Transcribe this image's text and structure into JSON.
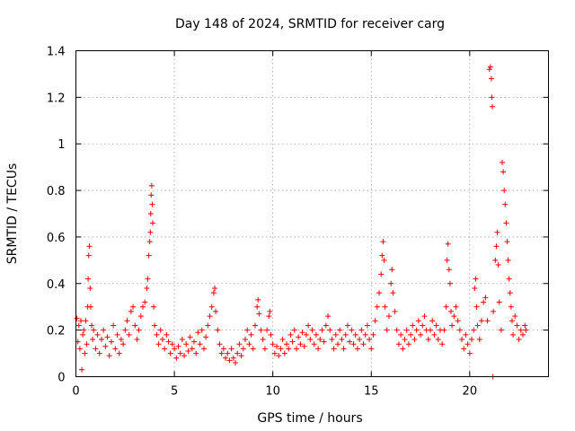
{
  "chart_data": {
    "type": "scatter",
    "title": "Day 148 of 2024, SRMTID for receiver carg",
    "xlabel": "GPS time / hours",
    "ylabel": "SRMTID / TECUs",
    "xlim": [
      0,
      24
    ],
    "ylim": [
      0,
      1.4
    ],
    "xticks": [
      0,
      5,
      10,
      15,
      20
    ],
    "xtick_labels": [
      "0",
      "5",
      "10",
      "15",
      "20"
    ],
    "yticks": [
      0,
      0.2,
      0.4,
      0.6,
      0.8,
      1.0,
      1.2,
      1.4
    ],
    "ytick_labels": [
      "0",
      "0.2",
      "0.4",
      "0.6",
      "0.8",
      "1",
      "1.2",
      "1.4"
    ],
    "grid": true,
    "marker": "plus",
    "marker_color": "#ff0000",
    "series": [
      {
        "name": "SRMTID",
        "points": [
          [
            0.05,
            0.25
          ],
          [
            0.1,
            0.15
          ],
          [
            0.15,
            0.22
          ],
          [
            0.2,
            0.12
          ],
          [
            0.25,
            0.24
          ],
          [
            0.3,
            0.03
          ],
          [
            0.35,
            0.18
          ],
          [
            0.4,
            0.2
          ],
          [
            0.45,
            0.1
          ],
          [
            0.5,
            0.24
          ],
          [
            0.55,
            0.14
          ],
          [
            0.6,
            0.3
          ],
          [
            0.62,
            0.42
          ],
          [
            0.65,
            0.52
          ],
          [
            0.68,
            0.56
          ],
          [
            0.72,
            0.38
          ],
          [
            0.75,
            0.3
          ],
          [
            0.8,
            0.22
          ],
          [
            0.85,
            0.16
          ],
          [
            0.9,
            0.2
          ],
          [
            1.0,
            0.12
          ],
          [
            1.1,
            0.18
          ],
          [
            1.2,
            0.1
          ],
          [
            1.3,
            0.16
          ],
          [
            1.4,
            0.2
          ],
          [
            1.5,
            0.13
          ],
          [
            1.6,
            0.17
          ],
          [
            1.7,
            0.09
          ],
          [
            1.8,
            0.15
          ],
          [
            1.9,
            0.22
          ],
          [
            2.0,
            0.12
          ],
          [
            2.1,
            0.18
          ],
          [
            2.2,
            0.1
          ],
          [
            2.3,
            0.16
          ],
          [
            2.4,
            0.14
          ],
          [
            2.5,
            0.2
          ],
          [
            2.6,
            0.24
          ],
          [
            2.7,
            0.18
          ],
          [
            2.8,
            0.28
          ],
          [
            2.9,
            0.3
          ],
          [
            3.0,
            0.22
          ],
          [
            3.1,
            0.16
          ],
          [
            3.2,
            0.2
          ],
          [
            3.3,
            0.26
          ],
          [
            3.4,
            0.3
          ],
          [
            3.5,
            0.32
          ],
          [
            3.6,
            0.38
          ],
          [
            3.65,
            0.42
          ],
          [
            3.7,
            0.52
          ],
          [
            3.75,
            0.58
          ],
          [
            3.78,
            0.62
          ],
          [
            3.8,
            0.7
          ],
          [
            3.82,
            0.78
          ],
          [
            3.85,
            0.82
          ],
          [
            3.88,
            0.74
          ],
          [
            3.9,
            0.66
          ],
          [
            3.95,
            0.3
          ],
          [
            4.0,
            0.22
          ],
          [
            4.1,
            0.18
          ],
          [
            4.2,
            0.14
          ],
          [
            4.3,
            0.2
          ],
          [
            4.4,
            0.16
          ],
          [
            4.5,
            0.12
          ],
          [
            4.6,
            0.18
          ],
          [
            4.7,
            0.15
          ],
          [
            4.8,
            0.1
          ],
          [
            4.9,
            0.14
          ],
          [
            5.0,
            0.12
          ],
          [
            5.1,
            0.08
          ],
          [
            5.2,
            0.13
          ],
          [
            5.3,
            0.1
          ],
          [
            5.4,
            0.16
          ],
          [
            5.5,
            0.09
          ],
          [
            5.6,
            0.14
          ],
          [
            5.7,
            0.11
          ],
          [
            5.8,
            0.17
          ],
          [
            5.9,
            0.12
          ],
          [
            6.0,
            0.15
          ],
          [
            6.1,
            0.1
          ],
          [
            6.2,
            0.19
          ],
          [
            6.3,
            0.14
          ],
          [
            6.4,
            0.2
          ],
          [
            6.5,
            0.12
          ],
          [
            6.6,
            0.17
          ],
          [
            6.7,
            0.22
          ],
          [
            6.8,
            0.26
          ],
          [
            6.9,
            0.3
          ],
          [
            7.0,
            0.36
          ],
          [
            7.05,
            0.38
          ],
          [
            7.1,
            0.28
          ],
          [
            7.2,
            0.2
          ],
          [
            7.3,
            0.14
          ],
          [
            7.4,
            0.1
          ],
          [
            7.5,
            0.12
          ],
          [
            7.6,
            0.08
          ],
          [
            7.7,
            0.1
          ],
          [
            7.8,
            0.07
          ],
          [
            7.9,
            0.12
          ],
          [
            8.0,
            0.08
          ],
          [
            8.1,
            0.06
          ],
          [
            8.2,
            0.1
          ],
          [
            8.3,
            0.14
          ],
          [
            8.4,
            0.09
          ],
          [
            8.5,
            0.12
          ],
          [
            8.6,
            0.16
          ],
          [
            8.7,
            0.2
          ],
          [
            8.8,
            0.14
          ],
          [
            8.9,
            0.18
          ],
          [
            9.0,
            0.12
          ],
          [
            9.1,
            0.22
          ],
          [
            9.2,
            0.3
          ],
          [
            9.25,
            0.33
          ],
          [
            9.3,
            0.27
          ],
          [
            9.4,
            0.2
          ],
          [
            9.5,
            0.16
          ],
          [
            9.6,
            0.12
          ],
          [
            9.7,
            0.2
          ],
          [
            9.8,
            0.26
          ],
          [
            9.85,
            0.28
          ],
          [
            9.9,
            0.18
          ],
          [
            10.0,
            0.14
          ],
          [
            10.1,
            0.1
          ],
          [
            10.2,
            0.13
          ],
          [
            10.3,
            0.09
          ],
          [
            10.4,
            0.12
          ],
          [
            10.5,
            0.16
          ],
          [
            10.6,
            0.1
          ],
          [
            10.7,
            0.14
          ],
          [
            10.8,
            0.12
          ],
          [
            10.9,
            0.18
          ],
          [
            11.0,
            0.15
          ],
          [
            11.1,
            0.2
          ],
          [
            11.2,
            0.12
          ],
          [
            11.3,
            0.17
          ],
          [
            11.4,
            0.14
          ],
          [
            11.5,
            0.19
          ],
          [
            11.6,
            0.13
          ],
          [
            11.7,
            0.18
          ],
          [
            11.8,
            0.22
          ],
          [
            11.9,
            0.16
          ],
          [
            12.0,
            0.2
          ],
          [
            12.1,
            0.14
          ],
          [
            12.2,
            0.18
          ],
          [
            12.3,
            0.12
          ],
          [
            12.4,
            0.16
          ],
          [
            12.5,
            0.2
          ],
          [
            12.6,
            0.15
          ],
          [
            12.7,
            0.22
          ],
          [
            12.8,
            0.26
          ],
          [
            12.9,
            0.2
          ],
          [
            13.0,
            0.16
          ],
          [
            13.1,
            0.12
          ],
          [
            13.2,
            0.18
          ],
          [
            13.3,
            0.14
          ],
          [
            13.4,
            0.2
          ],
          [
            13.5,
            0.16
          ],
          [
            13.6,
            0.12
          ],
          [
            13.7,
            0.18
          ],
          [
            13.8,
            0.22
          ],
          [
            13.9,
            0.15
          ],
          [
            14.0,
            0.2
          ],
          [
            14.1,
            0.14
          ],
          [
            14.2,
            0.18
          ],
          [
            14.3,
            0.12
          ],
          [
            14.4,
            0.16
          ],
          [
            14.5,
            0.2
          ],
          [
            14.6,
            0.14
          ],
          [
            14.7,
            0.18
          ],
          [
            14.8,
            0.22
          ],
          [
            14.9,
            0.16
          ],
          [
            15.0,
            0.12
          ],
          [
            15.1,
            0.18
          ],
          [
            15.2,
            0.24
          ],
          [
            15.3,
            0.3
          ],
          [
            15.4,
            0.36
          ],
          [
            15.5,
            0.44
          ],
          [
            15.55,
            0.52
          ],
          [
            15.6,
            0.58
          ],
          [
            15.65,
            0.5
          ],
          [
            15.7,
            0.3
          ],
          [
            15.8,
            0.2
          ],
          [
            15.9,
            0.26
          ],
          [
            16.0,
            0.4
          ],
          [
            16.05,
            0.46
          ],
          [
            16.1,
            0.36
          ],
          [
            16.2,
            0.28
          ],
          [
            16.3,
            0.2
          ],
          [
            16.4,
            0.14
          ],
          [
            16.5,
            0.18
          ],
          [
            16.6,
            0.12
          ],
          [
            16.7,
            0.16
          ],
          [
            16.8,
            0.2
          ],
          [
            16.9,
            0.14
          ],
          [
            17.0,
            0.18
          ],
          [
            17.1,
            0.22
          ],
          [
            17.2,
            0.16
          ],
          [
            17.3,
            0.2
          ],
          [
            17.4,
            0.24
          ],
          [
            17.5,
            0.18
          ],
          [
            17.6,
            0.22
          ],
          [
            17.7,
            0.26
          ],
          [
            17.8,
            0.2
          ],
          [
            17.9,
            0.16
          ],
          [
            18.0,
            0.2
          ],
          [
            18.1,
            0.24
          ],
          [
            18.2,
            0.18
          ],
          [
            18.3,
            0.22
          ],
          [
            18.4,
            0.16
          ],
          [
            18.5,
            0.2
          ],
          [
            18.6,
            0.14
          ],
          [
            18.7,
            0.2
          ],
          [
            18.8,
            0.3
          ],
          [
            18.85,
            0.5
          ],
          [
            18.9,
            0.57
          ],
          [
            18.95,
            0.46
          ],
          [
            19.0,
            0.4
          ],
          [
            19.05,
            0.28
          ],
          [
            19.1,
            0.22
          ],
          [
            19.2,
            0.26
          ],
          [
            19.3,
            0.3
          ],
          [
            19.4,
            0.24
          ],
          [
            19.5,
            0.2
          ],
          [
            19.6,
            0.16
          ],
          [
            19.7,
            0.12
          ],
          [
            19.8,
            0.18
          ],
          [
            19.9,
            0.14
          ],
          [
            20.0,
            0.1
          ],
          [
            20.1,
            0.16
          ],
          [
            20.2,
            0.2
          ],
          [
            20.25,
            0.38
          ],
          [
            20.3,
            0.42
          ],
          [
            20.35,
            0.3
          ],
          [
            20.4,
            0.22
          ],
          [
            20.5,
            0.16
          ],
          [
            20.6,
            0.24
          ],
          [
            20.7,
            0.32
          ],
          [
            20.8,
            0.34
          ],
          [
            20.9,
            0.24
          ],
          [
            21.0,
            1.32
          ],
          [
            21.05,
            1.33
          ],
          [
            21.1,
            1.28
          ],
          [
            21.12,
            1.2
          ],
          [
            21.15,
            1.16
          ],
          [
            21.18,
            0.0
          ],
          [
            21.2,
            0.28
          ],
          [
            21.3,
            0.5
          ],
          [
            21.35,
            0.56
          ],
          [
            21.4,
            0.62
          ],
          [
            21.45,
            0.48
          ],
          [
            21.5,
            0.32
          ],
          [
            21.6,
            0.2
          ],
          [
            21.65,
            0.92
          ],
          [
            21.7,
            0.88
          ],
          [
            21.75,
            0.8
          ],
          [
            21.8,
            0.74
          ],
          [
            21.85,
            0.66
          ],
          [
            21.9,
            0.58
          ],
          [
            21.95,
            0.5
          ],
          [
            22.0,
            0.42
          ],
          [
            22.05,
            0.36
          ],
          [
            22.1,
            0.3
          ],
          [
            22.15,
            0.24
          ],
          [
            22.2,
            0.18
          ],
          [
            22.3,
            0.26
          ],
          [
            22.4,
            0.22
          ],
          [
            22.5,
            0.16
          ],
          [
            22.6,
            0.2
          ],
          [
            22.7,
            0.18
          ],
          [
            22.8,
            0.22
          ],
          [
            22.85,
            0.2
          ]
        ]
      }
    ]
  }
}
